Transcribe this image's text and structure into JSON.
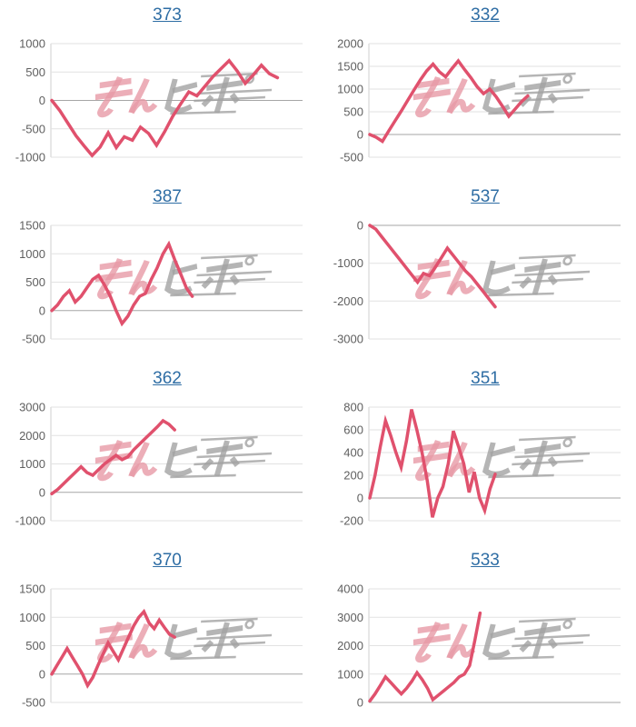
{
  "page": {
    "background": "#ffffff"
  },
  "style": {
    "line_color": "#e0516d",
    "title_link_color": "#2e6da4",
    "tick_label_color": "#5f5f5f",
    "grid_color": "#e2e2e2",
    "zero_line_color": "#a6a6a6",
    "axis_color": "#cfcfcf"
  },
  "watermark": {
    "text": "みんレポ",
    "pink_color": "#e79aa6",
    "gray_color": "#a2a2a2"
  },
  "chart_data": [
    {
      "type": "line",
      "title": "373",
      "ylim": [
        -1000,
        1000
      ],
      "yticks": [
        1000,
        500,
        0,
        -500,
        -1000
      ],
      "x_end_fraction": 0.9,
      "values": [
        0,
        -180,
        -400,
        -620,
        -800,
        -970,
        -820,
        -570,
        -830,
        -640,
        -700,
        -470,
        -580,
        -790,
        -550,
        -280,
        -60,
        150,
        80,
        250,
        420,
        560,
        700,
        520,
        300,
        450,
        620,
        470,
        400
      ]
    },
    {
      "type": "line",
      "title": "332",
      "ylim": [
        -500,
        2000
      ],
      "yticks": [
        2000,
        1500,
        1000,
        500,
        0,
        -500
      ],
      "x_end_fraction": 0.63,
      "values": [
        0,
        -60,
        -150,
        80,
        300,
        520,
        750,
        980,
        1200,
        1400,
        1550,
        1380,
        1270,
        1450,
        1620,
        1430,
        1250,
        1050,
        900,
        1000,
        830,
        620,
        400,
        560,
        720,
        850
      ]
    },
    {
      "type": "line",
      "title": "387",
      "ylim": [
        -500,
        1500
      ],
      "yticks": [
        1500,
        1000,
        500,
        0,
        -500
      ],
      "x_end_fraction": 0.56,
      "values": [
        0,
        100,
        250,
        350,
        150,
        250,
        400,
        550,
        620,
        450,
        250,
        0,
        -230,
        -100,
        100,
        250,
        300,
        550,
        750,
        1000,
        1170,
        900,
        650,
        400,
        250
      ]
    },
    {
      "type": "line",
      "title": "537",
      "ylim": [
        -3000,
        0
      ],
      "yticks": [
        0,
        -1000,
        -2000,
        -3000
      ],
      "x_end_fraction": 0.5,
      "values": [
        0,
        -100,
        -300,
        -500,
        -700,
        -900,
        -1100,
        -1300,
        -1500,
        -1270,
        -1330,
        -1100,
        -850,
        -600,
        -800,
        -1000,
        -1200,
        -1350,
        -1550,
        -1750,
        -1950,
        -2150
      ]
    },
    {
      "type": "line",
      "title": "362",
      "ylim": [
        -1000,
        3000
      ],
      "yticks": [
        3000,
        2000,
        1000,
        0,
        -1000
      ],
      "x_end_fraction": 0.49,
      "values": [
        -50,
        100,
        300,
        500,
        700,
        900,
        700,
        600,
        800,
        1000,
        1150,
        1300,
        1150,
        1250,
        1500,
        1700,
        1900,
        2100,
        2300,
        2520,
        2400,
        2200
      ]
    },
    {
      "type": "line",
      "title": "351",
      "ylim": [
        -200,
        800
      ],
      "yticks": [
        800,
        600,
        400,
        200,
        0,
        -200
      ],
      "x_end_fraction": 0.5,
      "values": [
        0,
        200,
        450,
        680,
        550,
        400,
        270,
        500,
        780,
        600,
        400,
        150,
        -170,
        0,
        100,
        300,
        590,
        450,
        300,
        50,
        230,
        0,
        -110,
        80,
        210
      ]
    },
    {
      "type": "line",
      "title": "370",
      "ylim": [
        -500,
        1500
      ],
      "yticks": [
        1500,
        1000,
        500,
        0,
        -500
      ],
      "x_end_fraction": 0.49,
      "values": [
        0,
        150,
        300,
        450,
        300,
        150,
        0,
        -200,
        -60,
        150,
        350,
        550,
        400,
        250,
        450,
        650,
        850,
        1000,
        1100,
        900,
        800,
        950,
        820,
        700,
        650
      ]
    },
    {
      "type": "line",
      "title": "533",
      "ylim": [
        0,
        4000
      ],
      "yticks": [
        4000,
        3000,
        2000,
        1000,
        0
      ],
      "x_end_fraction": 0.44,
      "values": [
        50,
        300,
        600,
        900,
        700,
        500,
        300,
        500,
        750,
        1050,
        800,
        500,
        100,
        250,
        400,
        550,
        700,
        900,
        1000,
        1300,
        2200,
        3150
      ]
    }
  ]
}
